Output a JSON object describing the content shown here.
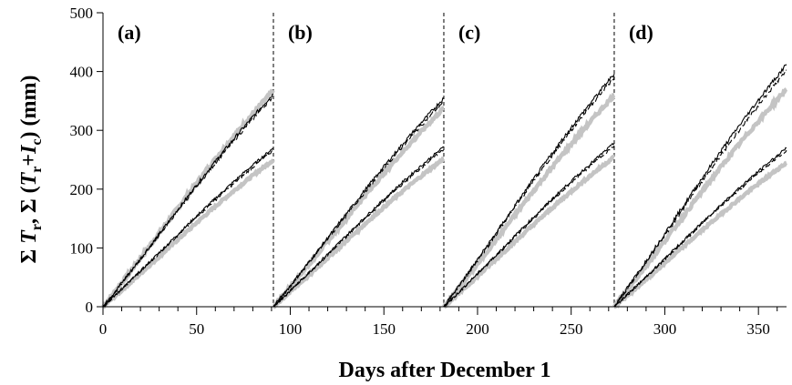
{
  "chart_data": {
    "type": "line",
    "xlabel": "Days after December 1",
    "ylabel_parts": [
      "Σ ",
      "T",
      "r",
      ", Σ (",
      "T",
      "r",
      "+",
      "I",
      "c",
      ") (mm)"
    ],
    "xlim": [
      0,
      365
    ],
    "ylim": [
      0,
      500
    ],
    "xticks": [
      0,
      50,
      100,
      150,
      200,
      250,
      300,
      350
    ],
    "yticks": [
      0,
      100,
      200,
      300,
      400,
      500
    ],
    "x_minor_step": 10,
    "grid": false,
    "period_dividers": [
      91,
      182,
      273
    ],
    "panels": [
      {
        "label": "(a)",
        "x_start": 0,
        "x_end": 91,
        "series": [
          {
            "style": "gray-thick",
            "values_at_end": [
              368,
              250
            ]
          },
          {
            "style": "black-solid",
            "values_at_end": [
              362,
              270
            ]
          },
          {
            "style": "black-dashed",
            "values_at_end": [
              358,
              266
            ]
          }
        ]
      },
      {
        "label": "(b)",
        "x_start": 91,
        "x_end": 182,
        "series": [
          {
            "style": "gray-thick",
            "values_at_end": [
              338,
              252
            ]
          },
          {
            "style": "black-solid",
            "values_at_end": [
              355,
              272
            ]
          },
          {
            "style": "black-dashed",
            "values_at_end": [
              350,
              268
            ]
          }
        ]
      },
      {
        "label": "(c)",
        "x_start": 182,
        "x_end": 273,
        "series": [
          {
            "style": "gray-thick",
            "values_at_end": [
              360,
              255
            ]
          },
          {
            "style": "black-solid",
            "values_at_end": [
              396,
              278
            ]
          },
          {
            "style": "black-dashed",
            "values_at_end": [
              390,
              274
            ]
          }
        ]
      },
      {
        "label": "(d)",
        "x_start": 273,
        "x_end": 365,
        "series": [
          {
            "style": "gray-thick",
            "values_at_end": [
              370,
              245
            ]
          },
          {
            "style": "black-solid",
            "values_at_end": [
              412,
              270
            ]
          },
          {
            "style": "black-dashed",
            "values_at_end": [
              402,
              266
            ]
          }
        ]
      }
    ]
  }
}
